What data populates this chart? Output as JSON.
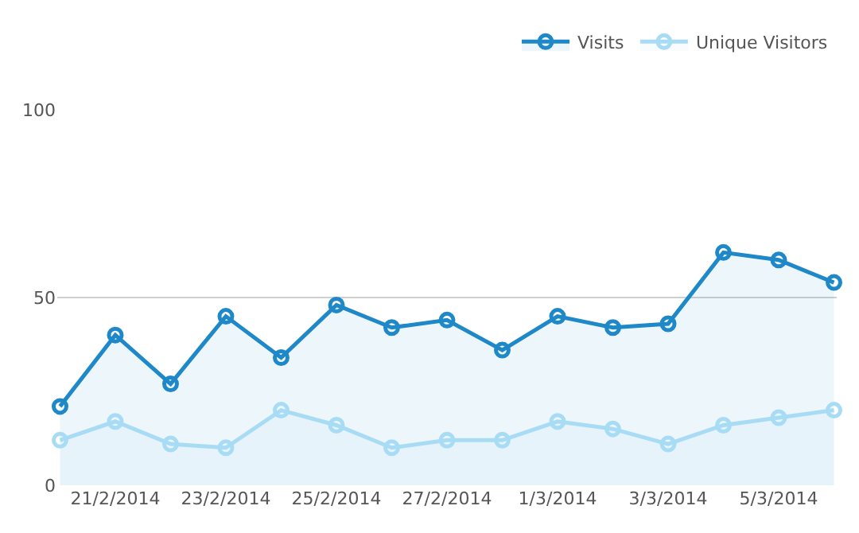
{
  "chart_data": {
    "type": "area",
    "categories": [
      null,
      "21/2/2014",
      null,
      "23/2/2014",
      null,
      "25/2/2014",
      null,
      "27/2/2014",
      null,
      "1/3/2014",
      null,
      "3/3/2014",
      null,
      "5/3/2014",
      null
    ],
    "series": [
      {
        "name": "Visits",
        "color": "#1e88c8",
        "values": [
          21,
          40,
          27,
          45,
          34,
          48,
          42,
          44,
          36,
          45,
          42,
          43,
          62,
          60,
          54
        ]
      },
      {
        "name": "Unique Visitors",
        "color": "#a8dcf5",
        "values": [
          12,
          17,
          11,
          10,
          20,
          16,
          10,
          12,
          12,
          17,
          15,
          11,
          16,
          18,
          20
        ]
      }
    ],
    "ylim": [
      0,
      100
    ],
    "yticks": [
      0,
      50,
      100
    ],
    "grid": "y",
    "legend": "top right",
    "marker": "circle",
    "line_style": "solid"
  }
}
